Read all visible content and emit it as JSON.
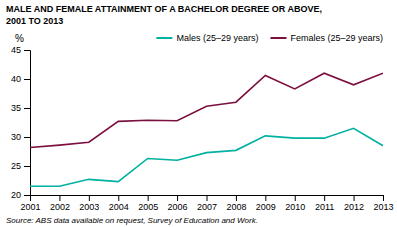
{
  "chart_data": {
    "type": "line",
    "title": "MALE AND FEMALE ATTAINMENT OF A BACHELOR DEGREE OR ABOVE,",
    "subtitle": "2001 TO 2013",
    "ylabel": "%",
    "annotations": [
      "Source: ABS data available on request,  Survey of Education and Work."
    ],
    "x": [
      2001,
      2002,
      2003,
      2004,
      2005,
      2006,
      2007,
      2008,
      2009,
      2010,
      2011,
      2012,
      2013
    ],
    "series": [
      {
        "name": "Males (25–29 years)",
        "color": "#00b0a0",
        "values": [
          21.5,
          21.5,
          22.7,
          22.3,
          26.3,
          26.0,
          27.3,
          27.7,
          30.2,
          29.8,
          29.8,
          31.5,
          28.5
        ]
      },
      {
        "name": "Females (25–29 years)",
        "color": "#7b1040",
        "values": [
          28.2,
          28.6,
          29.1,
          32.7,
          32.9,
          32.8,
          35.3,
          36.0,
          40.6,
          38.3,
          41.0,
          39.0,
          41.0
        ]
      }
    ],
    "xlim": [
      2001,
      2013
    ],
    "xticks": [
      2001,
      2002,
      2003,
      2004,
      2005,
      2006,
      2007,
      2008,
      2009,
      2010,
      2011,
      2012,
      2013
    ],
    "ylim": [
      20,
      45
    ],
    "yticks": [
      20,
      25,
      30,
      35,
      40,
      45
    ],
    "grid": false,
    "legend": "upper right"
  }
}
